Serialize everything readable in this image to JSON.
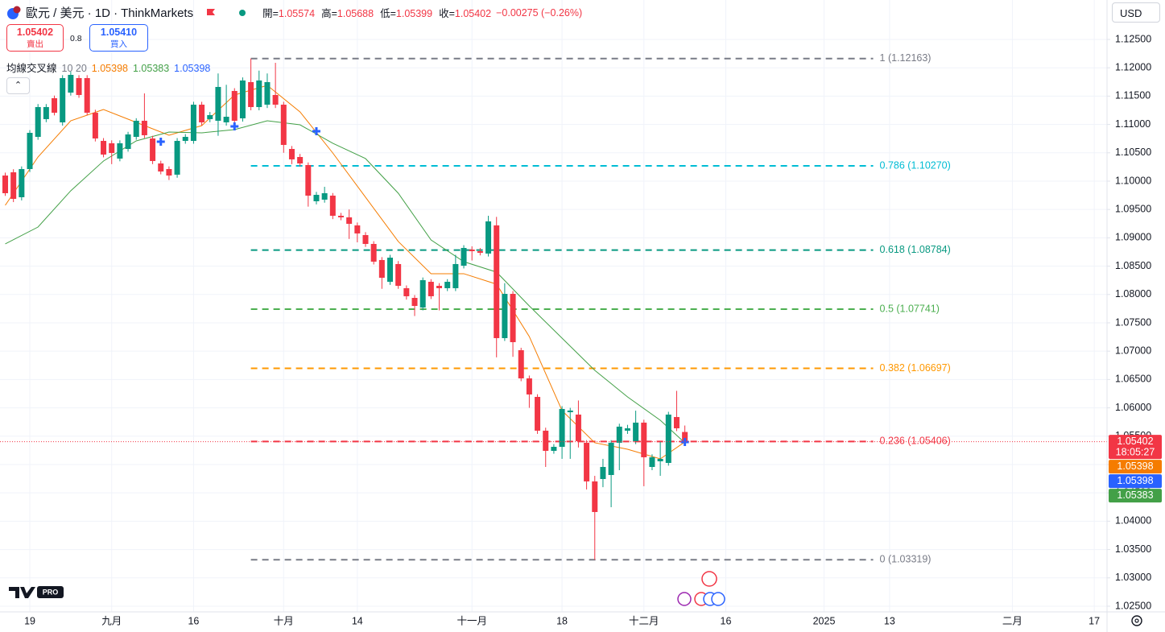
{
  "header": {
    "symbol": "歐元 / 美元 · 1D · ThinkMarkets",
    "ohlc": [
      {
        "label": "開=",
        "value": 1.05574
      },
      {
        "label": "高=",
        "value": 1.05688
      },
      {
        "label": "低=",
        "value": 1.05399
      },
      {
        "label": "收=",
        "value": 1.05402
      }
    ],
    "change": "−0.00275 (−0.26%)"
  },
  "trade": {
    "sell_price": "1.05402",
    "sell_label": "賣出",
    "spread": "0.8",
    "buy_price": "1.05410",
    "buy_label": "買入"
  },
  "indicator": {
    "name": "均線交叉線",
    "params": "10 20",
    "values": [
      "1.05398",
      "1.05383",
      "1.05398"
    ]
  },
  "currency": "USD",
  "logo": "PRO",
  "chart_data": {
    "type": "candlestick",
    "xlim": [
      -3.64,
      131.56
    ],
    "ylim": [
      1.024,
      1.13196
    ],
    "xticks": [
      {
        "value": 0,
        "label": "19"
      },
      {
        "value": 10,
        "label": "九月"
      },
      {
        "value": 20,
        "label": "16"
      },
      {
        "value": 31,
        "label": "十月"
      },
      {
        "value": 40,
        "label": "14"
      },
      {
        "value": 54,
        "label": "十一月"
      },
      {
        "value": 65,
        "label": "18"
      },
      {
        "value": 75,
        "label": "十二月"
      },
      {
        "value": 85,
        "label": "16"
      },
      {
        "value": 97,
        "label": "2025"
      },
      {
        "value": 105,
        "label": "13"
      },
      {
        "value": 120,
        "label": "二月"
      },
      {
        "value": 130,
        "label": "17"
      }
    ],
    "yticks": [
      {
        "value": 1.125,
        "label": "1.12500"
      },
      {
        "value": 1.12,
        "label": "1.12000"
      },
      {
        "value": 1.115,
        "label": "1.11500"
      },
      {
        "value": 1.11,
        "label": "1.11000"
      },
      {
        "value": 1.105,
        "label": "1.10500"
      },
      {
        "value": 1.1,
        "label": "1.10000"
      },
      {
        "value": 1.095,
        "label": "1.09500"
      },
      {
        "value": 1.09,
        "label": "1.09000"
      },
      {
        "value": 1.085,
        "label": "1.08500"
      },
      {
        "value": 1.08,
        "label": "1.08000"
      },
      {
        "value": 1.075,
        "label": "1.07500"
      },
      {
        "value": 1.07,
        "label": "1.07000"
      },
      {
        "value": 1.065,
        "label": "1.06500"
      },
      {
        "value": 1.06,
        "label": "1.06000"
      },
      {
        "value": 1.055,
        "label": "1.05500"
      },
      {
        "value": 1.05,
        "label": "1.05000"
      },
      {
        "value": 1.045,
        "label": "1.04500"
      },
      {
        "value": 1.04,
        "label": "1.04000"
      },
      {
        "value": 1.035,
        "label": "1.03500"
      },
      {
        "value": 1.03,
        "label": "1.03000"
      },
      {
        "value": 1.025,
        "label": "1.02500"
      }
    ],
    "grid": true,
    "up_color": "#089981",
    "down_color": "#f23645",
    "x": [
      -3,
      -2,
      -1,
      0,
      1,
      2,
      3,
      4,
      5,
      6,
      7,
      8,
      9,
      10,
      11,
      12,
      13,
      14,
      15,
      16,
      17,
      18,
      19,
      20,
      21,
      22,
      23,
      24,
      25,
      26,
      27,
      28,
      29,
      30,
      31,
      32,
      33,
      34,
      35,
      36,
      37,
      38,
      39,
      40,
      41,
      42,
      43,
      44,
      45,
      46,
      47,
      48,
      49,
      50,
      51,
      52,
      53,
      54,
      55,
      56,
      57,
      58,
      59,
      60,
      61,
      62,
      63,
      64,
      65,
      66,
      67,
      68,
      69,
      70,
      71,
      72,
      73,
      74,
      75,
      76,
      77,
      78,
      79,
      80
    ],
    "open": [
      1.10099,
      1.10156,
      1.09716,
      1.10213,
      1.10781,
      1.11094,
      1.11463,
      1.11037,
      1.11562,
      1.11818,
      1.11818,
      1.11207,
      1.1071,
      1.10668,
      1.10398,
      1.10568,
      1.10781,
      1.11065,
      1.10753,
      1.10312,
      1.10213,
      1.10114,
      1.1071,
      1.1071,
      1.11349,
      1.11094,
      1.11065,
      1.11037,
      1.11591,
      1.11108,
      1.11747,
      1.11307,
      1.11349,
      1.1152,
      1.11349,
      1.10568,
      1.10426,
      1.10284,
      1.09645,
      1.09673,
      1.09744,
      1.09389,
      1.09361,
      1.09219,
      1.09048,
      1.08892,
      1.08608,
      1.08224,
      1.08537,
      1.08111,
      1.0794,
      1.0777,
      1.08224,
      1.08153,
      1.08111,
      1.08111,
      1.08508,
      1.08793,
      1.08764,
      1.08722,
      1.09219,
      1.0723,
      1.08011,
      1.07017,
      1.0652,
      1.06193,
      1.05597,
      1.05241,
      1.05312,
      1.05923,
      1.05881,
      1.05384,
      1.04702,
      1.04744,
      1.04815,
      1.05384,
      1.05597,
      1.05412,
      1.05739,
      1.04957,
      1.05057,
      1.05028,
      1.05838,
      1.05574
    ],
    "high": [
      1.1015,
      1.1021,
      1.1026,
      1.109,
      1.1136,
      1.1136,
      1.1151,
      1.1187,
      1.1193,
      1.1187,
      1.1187,
      1.1126,
      1.1076,
      1.1072,
      1.1072,
      1.1087,
      1.1111,
      1.11548,
      1.108,
      1.1036,
      1.1026,
      1.1076,
      1.1083,
      1.114,
      1.114,
      1.1122,
      1.119,
      1.117,
      1.1164,
      1.1183,
      1.12163,
      1.1195,
      1.119,
      1.12088,
      1.114,
      1.1062,
      1.1048,
      1.1033,
      1.0981,
      1.099,
      1.0979,
      1.0944,
      1.095,
      1.0927,
      1.091,
      1.0894,
      1.0866,
      1.087,
      1.0859,
      1.0816,
      1.0799,
      1.083,
      1.0827,
      1.082,
      1.0827,
      1.087,
      1.0887,
      1.0885,
      1.0882,
      1.09389,
      1.0937,
      1.082,
      1.0806,
      1.0706,
      1.0657,
      1.0624,
      1.0565,
      1.0536,
      1.0603,
      1.06,
      1.0613,
      1.0543,
      1.048,
      1.051,
      1.0543,
      1.0572,
      1.057,
      1.0595,
      1.0579,
      1.0518,
      1.054,
      1.0593,
      1.063,
      1.05688
    ],
    "low": [
      1.0974,
      1.0963,
      1.0966,
      1.1016,
      1.1073,
      1.1104,
      1.1116,
      1.1098,
      1.1151,
      1.1147,
      1.1116,
      1.107,
      1.1042,
      1.103,
      1.1035,
      1.1052,
      1.1073,
      1.1076,
      1.103,
      1.1012,
      1.1002,
      1.1006,
      1.1066,
      1.1066,
      1.1098,
      1.1104,
      1.108,
      1.1098,
      1.1093,
      1.1105,
      1.1125,
      1.1125,
      1.1129,
      1.1129,
      1.105,
      1.103,
      1.1026,
      1.0955,
      1.0959,
      1.0962,
      1.0933,
      1.0931,
      1.0898,
      1.0892,
      1.0884,
      1.0853,
      1.081,
      1.0817,
      1.081,
      1.0791,
      1.0762,
      1.0772,
      1.0792,
      1.0772,
      1.0806,
      1.0806,
      1.0846,
      1.086,
      1.0869,
      1.0867,
      1.0689,
      1.0718,
      1.069,
      1.0647,
      1.06,
      1.0554,
      1.04957,
      1.0519,
      1.051,
      1.051,
      1.053,
      1.0456,
      1.03319,
      1.046,
      1.04247,
      1.049,
      1.0554,
      1.0536,
      1.04617,
      1.049,
      1.048,
      1.0498,
      1.0559,
      1.05399
    ],
    "close": [
      1.09787,
      1.09687,
      1.10213,
      1.10852,
      1.11307,
      1.11307,
      1.11207,
      1.11818,
      1.11875,
      1.1152,
      1.11207,
      1.10753,
      1.10469,
      1.10497,
      1.10668,
      1.10824,
      1.11065,
      1.1081,
      1.10355,
      1.1017,
      1.10099,
      1.1071,
      1.10781,
      1.11349,
      1.11037,
      1.11165,
      1.11662,
      1.11136,
      1.11065,
      1.11776,
      1.11307,
      1.11776,
      1.11747,
      1.11349,
      1.10639,
      1.10384,
      1.10312,
      1.09744,
      1.09758,
      1.09787,
      1.09389,
      1.09361,
      1.09247,
      1.09077,
      1.08892,
      1.08579,
      1.08295,
      1.0865,
      1.08153,
      1.07969,
      1.07798,
      1.08253,
      1.07969,
      1.08111,
      1.08224,
      1.08537,
      1.08821,
      1.08764,
      1.08736,
      1.0929,
      1.0723,
      1.08011,
      1.07159,
      1.0652,
      1.06236,
      1.05597,
      1.05241,
      1.05312,
      1.0598,
      1.05952,
      1.05412,
      1.04702,
      1.04162,
      1.04957,
      1.05384,
      1.05668,
      1.05639,
      1.05739,
      1.05128,
      1.05128,
      1.05099,
      1.05881,
      1.05639,
      1.05402
    ],
    "series": [
      {
        "color": "#f57c00",
        "x": [
          -3,
          1,
          5,
          9,
          13,
          17,
          21,
          25,
          29,
          33,
          37,
          41,
          45,
          49,
          53,
          57,
          61,
          65,
          69,
          73,
          77,
          80
        ],
        "values": [
          1.09574,
          1.10426,
          1.11065,
          1.11264,
          1.11037,
          1.1081,
          1.1098,
          1.1152,
          1.1169,
          1.11222,
          1.10497,
          1.09716,
          1.08935,
          1.08367,
          1.08367,
          1.08182,
          1.07259,
          1.05952,
          1.05384,
          1.0527,
          1.05099,
          1.05398
        ]
      },
      {
        "color": "#43a047",
        "x": [
          -3,
          1,
          5,
          9,
          13,
          17,
          21,
          25,
          29,
          33,
          37,
          41,
          45,
          49,
          53,
          57,
          61,
          65,
          69,
          73,
          77,
          80
        ],
        "values": [
          1.08892,
          1.0919,
          1.0983,
          1.10355,
          1.1071,
          1.10866,
          1.10852,
          1.10909,
          1.11065,
          1.10994,
          1.10668,
          1.10398,
          1.09787,
          1.08963,
          1.08579,
          1.08395,
          1.07798,
          1.0723,
          1.06662,
          1.06193,
          1.05781,
          1.05383
        ]
      }
    ],
    "crossovers": {
      "color": "#2962ff",
      "x": [
        16,
        25,
        35,
        80
      ],
      "values": [
        1.10696,
        1.10966,
        1.10881,
        1.05398
      ]
    },
    "fib_x": [
      27,
      103
    ],
    "fib_levels": [
      {
        "value": 1.12163,
        "label": "1 (1.12163)",
        "color": "#787b86"
      },
      {
        "value": 1.1027,
        "label": "0.786 (1.10270)",
        "color": "#00bcd4"
      },
      {
        "value": 1.08784,
        "label": "0.618 (1.08784)",
        "color": "#089981"
      },
      {
        "value": 1.07741,
        "label": "0.5 (1.07741)",
        "color": "#4caf50"
      },
      {
        "value": 1.06697,
        "label": "0.382 (1.06697)",
        "color": "#ff9800"
      },
      {
        "value": 1.05406,
        "label": "0.236 (1.05406)",
        "color": "#f23645"
      },
      {
        "value": 1.03319,
        "label": "0 (1.03319)",
        "color": "#787b86"
      }
    ],
    "price_labels": [
      {
        "value": 1.05402,
        "countdown": "18:05:27",
        "color": "#f23645"
      },
      {
        "value": 1.05398,
        "color": "#f57c00"
      },
      {
        "value": 1.05398,
        "color": "#2962ff"
      },
      {
        "value": 1.05383,
        "color": "#43a047"
      }
    ]
  }
}
